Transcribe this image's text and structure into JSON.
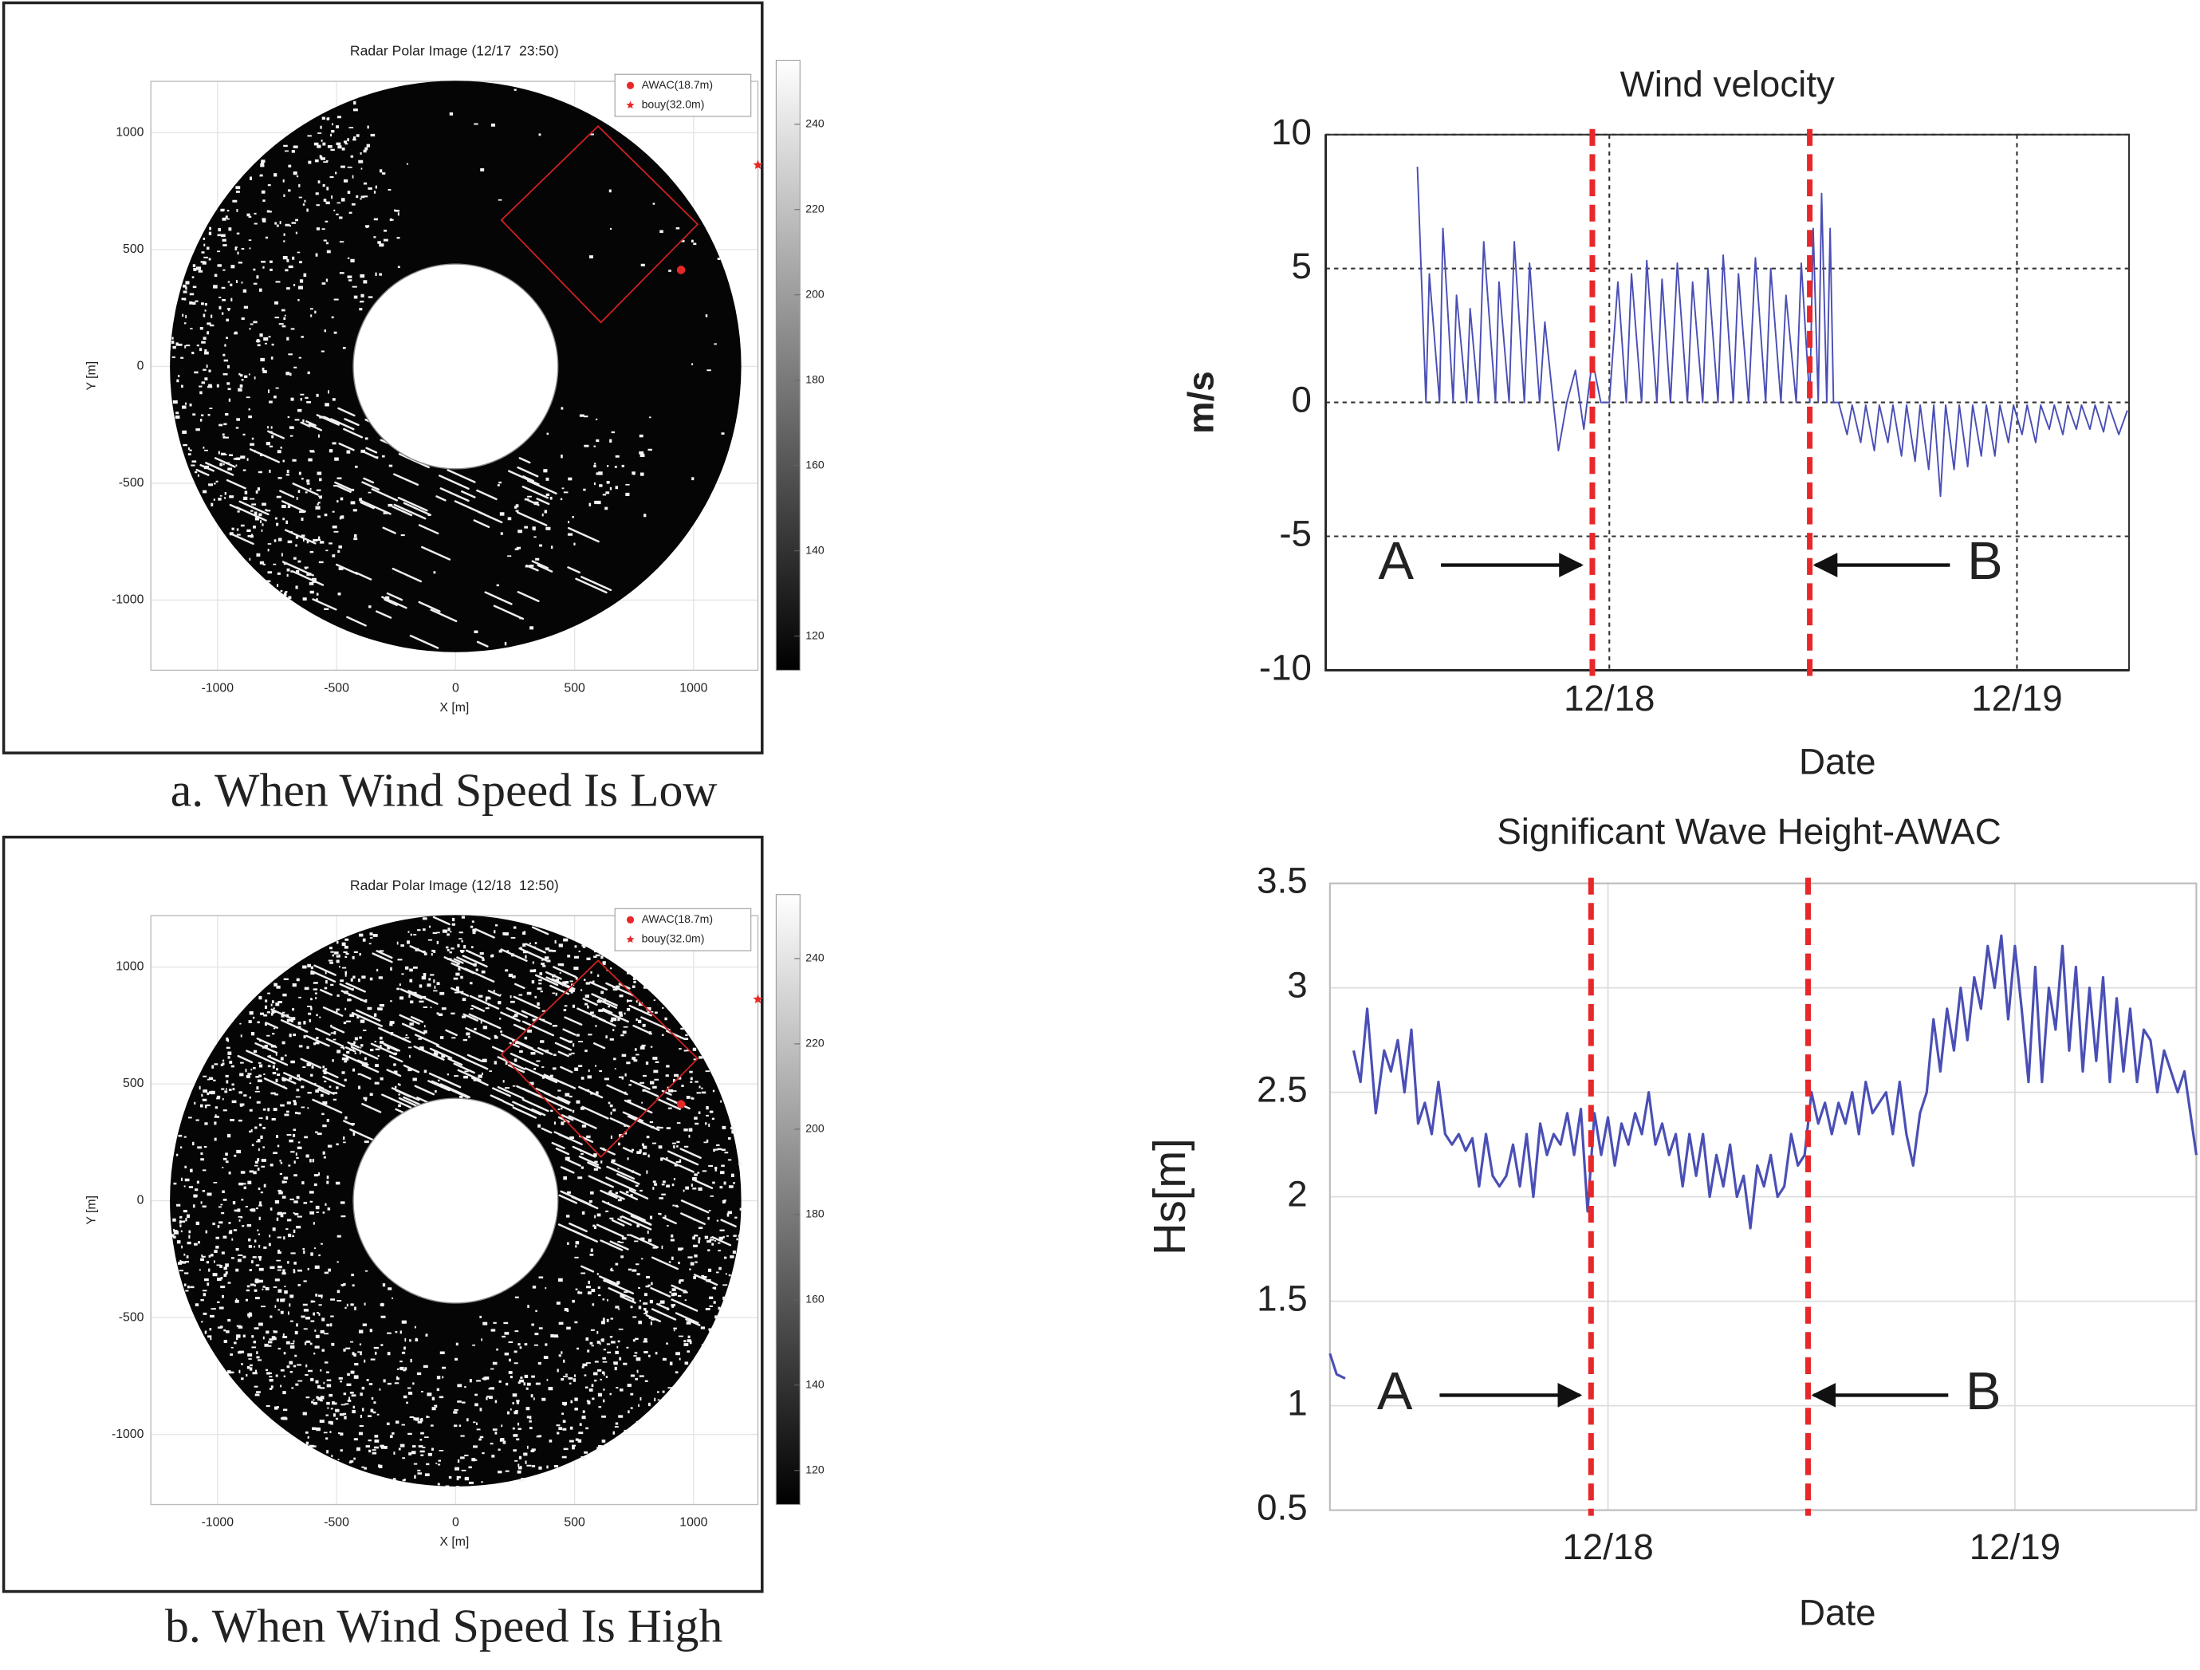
{
  "chart_data": [
    {
      "type": "radar_image",
      "title": "Radar Polar Image (12/17  23:50)",
      "caption": "a. When Wind Speed Is Low",
      "xlabel": "X [m]",
      "ylabel": "Y [m]",
      "xlim": [
        -1280,
        1270
      ],
      "ylim": [
        -1300,
        1220
      ],
      "xticks": [
        -1000,
        -500,
        0,
        500,
        1000
      ],
      "yticks": [
        -1000,
        -500,
        0,
        500,
        1000
      ],
      "grid": true,
      "series": [
        {
          "name": "AWAC(18.7m)",
          "color": "#e8272a",
          "marker": "circle",
          "x": [
            947
          ],
          "y": [
            413
          ]
        },
        {
          "name": "bouy(32.0m)",
          "color": "#e8272a",
          "marker": "star",
          "x": [
            1270
          ],
          "y": [
            862
          ]
        }
      ],
      "colorbar": {
        "lim": [
          112,
          255
        ],
        "ticks": [
          120,
          140,
          160,
          180,
          200,
          220,
          240
        ]
      }
    },
    {
      "type": "radar_image",
      "title": "Radar Polar Image (12/18  12:50)",
      "caption": "b. When Wind Speed Is High",
      "xlabel": "X [m]",
      "ylabel": "Y [m]",
      "xlim": [
        -1280,
        1270
      ],
      "ylim": [
        -1300,
        1220
      ],
      "xticks": [
        -1000,
        -500,
        0,
        500,
        1000
      ],
      "yticks": [
        -1000,
        -500,
        0,
        500,
        1000
      ],
      "grid": true,
      "series": [
        {
          "name": "AWAC(18.7m)",
          "color": "#e8272a",
          "marker": "circle",
          "x": [
            947
          ],
          "y": [
            413
          ]
        },
        {
          "name": "bouy(32.0m)",
          "color": "#e8272a",
          "marker": "star",
          "x": [
            1270
          ],
          "y": [
            862
          ]
        }
      ],
      "colorbar": {
        "lim": [
          112,
          255
        ],
        "ticks": [
          120,
          140,
          160,
          180,
          200,
          220,
          240
        ]
      }
    },
    {
      "type": "line",
      "title": "Wind velocity",
      "xlabel": "Date",
      "ylabel": "m/s",
      "xlim": [
        7.3,
        54.6
      ],
      "ylim": [
        -10,
        10
      ],
      "yticks": [
        -10,
        -5,
        0,
        5,
        10
      ],
      "xticks": [
        {
          "value": 24,
          "label": "12/18"
        },
        {
          "value": 48,
          "label": "12/19"
        }
      ],
      "grid": "dotted",
      "x": [
        12.7,
        13.2,
        13.4,
        14.0,
        14.2,
        14.8,
        15.0,
        15.6,
        15.8,
        16.3,
        16.6,
        17.3,
        17.5,
        18.1,
        18.4,
        19.0,
        19.3,
        19.9,
        20.2,
        20.7,
        21.0,
        21.5,
        22.0,
        22.5,
        23.0,
        23.5,
        24.0,
        24.5,
        25.0,
        25.3,
        25.9,
        26.2,
        26.8,
        27.1,
        27.6,
        28.0,
        28.6,
        28.9,
        29.5,
        29.8,
        30.4,
        30.7,
        31.3,
        31.6,
        32.2,
        32.6,
        33.2,
        33.5,
        34.1,
        34.4,
        35.0,
        35.3,
        35.8,
        36.0,
        36.3,
        36.5,
        36.8,
        37.0,
        37.2,
        37.5,
        38.0,
        38.3,
        38.8,
        39.1,
        39.6,
        39.9,
        40.4,
        40.7,
        41.2,
        41.5,
        42.0,
        42.3,
        42.8,
        43.1,
        43.5,
        43.8,
        44.3,
        44.6,
        45.1,
        45.4,
        45.9,
        46.2,
        46.7,
        47.0,
        47.5,
        47.8,
        48.3,
        48.6,
        49.1,
        49.4,
        49.9,
        50.2,
        50.7,
        51.0,
        51.5,
        51.8,
        52.3,
        52.6,
        53.1,
        53.4,
        54.0,
        54.5
      ],
      "series": [
        {
          "color": "#4a4fb5",
          "values": [
            8.8,
            0,
            4.8,
            0,
            6.5,
            0,
            4,
            0,
            3.5,
            0,
            6,
            0,
            4.5,
            0,
            6,
            0,
            5.2,
            0,
            3,
            0,
            -1.8,
            0,
            1.2,
            -1,
            1.6,
            0,
            0,
            4.5,
            0,
            4.8,
            0,
            5.3,
            0,
            4.6,
            0,
            5.2,
            0,
            4.5,
            0,
            5,
            0,
            5.5,
            0,
            4.8,
            0,
            5.4,
            0,
            5,
            0,
            4,
            0,
            5.2,
            0,
            6.5,
            0,
            7.8,
            0,
            6.5,
            0,
            0,
            -1.2,
            -0.1,
            -1.5,
            -0.1,
            -1.8,
            -0.1,
            -1.5,
            -0.1,
            -2,
            -0.1,
            -2.2,
            -0.1,
            -2.5,
            -0.1,
            -3.5,
            -0.1,
            -2.5,
            -0.1,
            -2.4,
            -0.1,
            -2,
            -0.1,
            -2,
            -0.1,
            -1.5,
            -0.1,
            -1.2,
            -0.1,
            -1.5,
            -0.1,
            -1,
            -0.1,
            -1.2,
            -0.1,
            -1,
            -0.1,
            -1,
            -0.1,
            -1.1,
            -0.1,
            -1.2,
            -0.3
          ]
        }
      ],
      "vlines": [
        {
          "x": 23,
          "label": "A",
          "side": "left"
        },
        {
          "x": 35.8,
          "label": "B",
          "side": "right"
        }
      ],
      "vline_color": "#e8272a"
    },
    {
      "type": "line",
      "title": "Significant Wave Height-AWAC",
      "xlabel": "Date",
      "ylabel": "Hs[m]",
      "xlim": [
        7.6,
        58.7
      ],
      "ylim": [
        0.5,
        3.5
      ],
      "yticks": [
        0.5,
        1,
        1.5,
        2,
        2.5,
        3,
        3.5
      ],
      "xticks": [
        {
          "value": 24,
          "label": "12/18"
        },
        {
          "value": 48,
          "label": "12/19"
        }
      ],
      "grid": "solid",
      "x": [
        7.6,
        8.0,
        8.5,
        null,
        9.0,
        9.4,
        9.8,
        10.3,
        10.8,
        11.2,
        11.6,
        12.0,
        12.4,
        12.8,
        13.2,
        13.6,
        14.0,
        14.4,
        14.8,
        15.2,
        15.6,
        16.0,
        16.4,
        16.8,
        17.2,
        17.6,
        18.0,
        18.4,
        18.8,
        19.2,
        19.6,
        20.0,
        20.4,
        20.8,
        21.2,
        21.6,
        22.0,
        22.4,
        22.8,
        23.2,
        23.6,
        24.0,
        24.4,
        24.8,
        25.2,
        25.6,
        26.0,
        26.4,
        26.8,
        27.2,
        27.6,
        28.0,
        28.4,
        28.8,
        29.2,
        29.6,
        30.0,
        30.4,
        30.8,
        31.2,
        31.6,
        32.0,
        32.4,
        32.8,
        33.2,
        33.6,
        34.0,
        34.4,
        34.8,
        35.2,
        35.6,
        36.0,
        36.4,
        36.8,
        37.2,
        37.6,
        38.0,
        38.4,
        38.8,
        39.2,
        39.6,
        40.0,
        40.4,
        40.8,
        41.2,
        41.6,
        42.0,
        42.4,
        42.8,
        43.2,
        43.6,
        44.0,
        44.4,
        44.8,
        45.2,
        45.6,
        46.0,
        46.4,
        46.8,
        47.2,
        47.6,
        48.0,
        48.4,
        48.8,
        49.2,
        49.6,
        50.0,
        50.4,
        50.8,
        51.2,
        51.6,
        52.0,
        52.4,
        52.8,
        53.2,
        53.6,
        54.0,
        54.4,
        54.8,
        55.2,
        55.6,
        56.0,
        56.4,
        56.8,
        57.2,
        57.6,
        58.0,
        58.7
      ],
      "series": [
        {
          "color": "#4a4fb5",
          "values": [
            1.25,
            1.15,
            1.13,
            null,
            2.7,
            2.55,
            2.9,
            2.4,
            2.7,
            2.6,
            2.75,
            2.5,
            2.8,
            2.35,
            2.45,
            2.3,
            2.55,
            2.3,
            2.25,
            2.3,
            2.22,
            2.28,
            2.05,
            2.3,
            2.1,
            2.05,
            2.1,
            2.25,
            2.05,
            2.3,
            2.0,
            2.35,
            2.2,
            2.3,
            2.25,
            2.4,
            2.2,
            2.42,
            1.93,
            2.4,
            2.2,
            2.38,
            2.15,
            2.35,
            2.25,
            2.4,
            2.3,
            2.5,
            2.25,
            2.35,
            2.2,
            2.3,
            2.05,
            2.3,
            2.1,
            2.3,
            2.0,
            2.2,
            2.05,
            2.25,
            2.0,
            2.1,
            1.85,
            2.15,
            2.05,
            2.2,
            2.0,
            2.05,
            2.3,
            2.15,
            2.2,
            2.5,
            2.35,
            2.45,
            2.3,
            2.45,
            2.35,
            2.5,
            2.3,
            2.55,
            2.4,
            2.45,
            2.5,
            2.3,
            2.55,
            2.3,
            2.15,
            2.4,
            2.5,
            2.85,
            2.6,
            2.9,
            2.7,
            3.0,
            2.75,
            3.05,
            2.9,
            3.2,
            3.0,
            3.25,
            2.85,
            3.2,
            2.9,
            2.55,
            3.1,
            2.55,
            3.0,
            2.8,
            3.2,
            2.7,
            3.1,
            2.6,
            3.0,
            2.65,
            3.05,
            2.55,
            2.95,
            2.6,
            2.9,
            2.55,
            2.8,
            2.75,
            2.5,
            2.7,
            2.6,
            2.5,
            2.6,
            2.2
          ]
        }
      ],
      "vlines": [
        {
          "x": 23,
          "label": "A",
          "side": "left"
        },
        {
          "x": 35.8,
          "label": "B",
          "side": "right"
        }
      ],
      "vline_color": "#e8272a"
    }
  ]
}
